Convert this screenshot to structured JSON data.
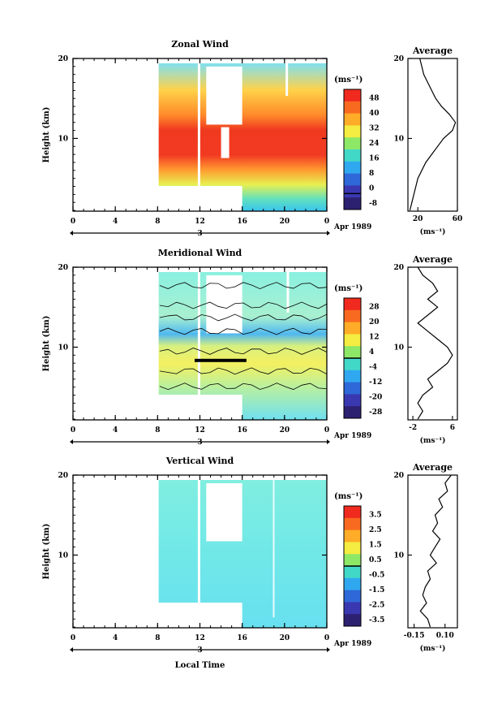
{
  "figure": {
    "date_label": "Apr 1989",
    "day_label": "3",
    "xlabel_bottom": "Local Time",
    "ylabel": "Height (km)",
    "x_ticks": [
      "0",
      "4",
      "8",
      "12",
      "16",
      "20",
      "0"
    ],
    "y_ticks": [
      "20",
      "10"
    ],
    "unit_label": "(ms⁻¹)",
    "avg_title": "Average"
  },
  "chart_data": [
    {
      "type": "heatmap",
      "title": "Zonal Wind",
      "ylabel": "Height (km)",
      "xlim": [
        0,
        24
      ],
      "ylim": [
        1,
        20
      ],
      "colorbar": {
        "labels": [
          "48",
          "40",
          "32",
          "24",
          "16",
          "8",
          "0",
          "-8"
        ],
        "min": -8,
        "max": 52,
        "zero_line": 0
      },
      "value_rows_by_height": [
        {
          "height": 20,
          "value": 22
        },
        {
          "height": 17,
          "value": 28
        },
        {
          "height": 14,
          "value": 36
        },
        {
          "height": 12,
          "value": 46
        },
        {
          "height": 10,
          "value": 46
        },
        {
          "height": 8,
          "value": 38
        },
        {
          "height": 6,
          "value": 26
        },
        {
          "height": 4,
          "value": 18
        },
        {
          "height": 1,
          "value": 12
        }
      ],
      "average": {
        "xticks": [
          "20",
          "60"
        ],
        "xlim": [
          10,
          60
        ],
        "xunit": "(ms⁻¹)",
        "points": [
          [
            22,
            20
          ],
          [
            24,
            19
          ],
          [
            26,
            18
          ],
          [
            30,
            17
          ],
          [
            34,
            16
          ],
          [
            38,
            15
          ],
          [
            44,
            14
          ],
          [
            52,
            13
          ],
          [
            58,
            12
          ],
          [
            55,
            11
          ],
          [
            46,
            10
          ],
          [
            40,
            9
          ],
          [
            34,
            8
          ],
          [
            28,
            7
          ],
          [
            24,
            6
          ],
          [
            20,
            5
          ],
          [
            18,
            4
          ],
          [
            16,
            3
          ],
          [
            14,
            2
          ],
          [
            12,
            1
          ]
        ]
      }
    },
    {
      "type": "heatmap",
      "title": "Meridional Wind",
      "ylabel": "Height (km)",
      "xlim": [
        0,
        24
      ],
      "ylim": [
        1,
        20
      ],
      "colorbar": {
        "labels": [
          "28",
          "20",
          "12",
          "4",
          "-4",
          "-12",
          "-20",
          "-28"
        ],
        "min": -32,
        "max": 32,
        "zero_line": 0
      },
      "average": {
        "xticks": [
          "-2",
          "6"
        ],
        "xlim": [
          -3,
          7
        ],
        "xunit": "(ms⁻¹)",
        "points": [
          [
            -1,
            20
          ],
          [
            0,
            19
          ],
          [
            2,
            18
          ],
          [
            3,
            17
          ],
          [
            1,
            16
          ],
          [
            3,
            15
          ],
          [
            1,
            14
          ],
          [
            -1,
            13
          ],
          [
            1,
            12
          ],
          [
            3,
            11
          ],
          [
            5,
            10
          ],
          [
            6,
            9
          ],
          [
            5,
            8
          ],
          [
            3,
            7
          ],
          [
            1,
            6
          ],
          [
            2,
            5
          ],
          [
            0,
            4
          ],
          [
            -1,
            3
          ],
          [
            0,
            2
          ],
          [
            -1,
            1
          ]
        ]
      }
    },
    {
      "type": "heatmap",
      "title": "Vertical Wind",
      "ylabel": "Height (km)",
      "xlim": [
        0,
        24
      ],
      "ylim": [
        1,
        20
      ],
      "colorbar": {
        "labels": [
          "3.5",
          "2.5",
          "1.5",
          "0.5",
          "-0.5",
          "-1.5",
          "-2.5",
          "-3.5"
        ],
        "min": -4,
        "max": 4,
        "zero_line": 0
      },
      "average": {
        "xticks": [
          "-0.15",
          "0.10"
        ],
        "xlim": [
          -0.2,
          0.2
        ],
        "xunit": "(ms⁻¹)",
        "points": [
          [
            0.15,
            20
          ],
          [
            0.1,
            19
          ],
          [
            0.12,
            18
          ],
          [
            0.05,
            17
          ],
          [
            0.08,
            16
          ],
          [
            0.02,
            15
          ],
          [
            0.04,
            14
          ],
          [
            0.0,
            13
          ],
          [
            0.06,
            12
          ],
          [
            0.02,
            11
          ],
          [
            -0.02,
            10
          ],
          [
            0.03,
            9
          ],
          [
            -0.04,
            8
          ],
          [
            -0.02,
            7
          ],
          [
            -0.06,
            6
          ],
          [
            -0.08,
            5
          ],
          [
            -0.05,
            4
          ],
          [
            -0.1,
            3
          ],
          [
            -0.04,
            2
          ],
          [
            -0.02,
            1
          ]
        ]
      }
    }
  ]
}
